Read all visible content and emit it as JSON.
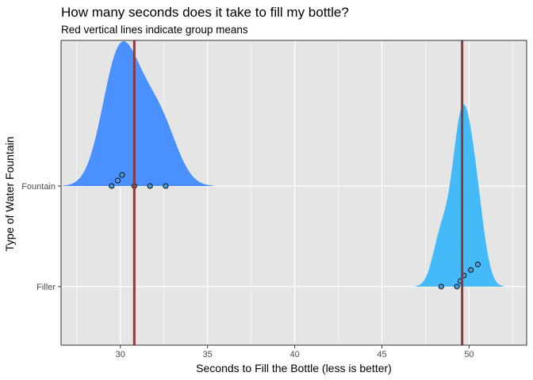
{
  "chart_data": {
    "type": "ridgeline",
    "title": "How many seconds does it take to fill my bottle?",
    "subtitle": "Red vertical lines indicate group means",
    "xlabel": "Seconds to Fill the Bottle (less is better)",
    "ylabel": "Type of Water Fountain",
    "xlim": [
      26.6,
      53.3
    ],
    "x_ticks": [
      30,
      35,
      40,
      45,
      50
    ],
    "x_tick_labels": [
      "30",
      "35",
      "40",
      "45",
      "50"
    ],
    "categories": [
      "Filler",
      "Fountain"
    ],
    "grid": true,
    "panel_background": "#e5e5e5",
    "grid_color": "#ffffff",
    "mean_line_color": "#8b3a3a",
    "point_fill": "#4b9cd3",
    "series": [
      {
        "category": "Fountain",
        "color": "#4a90ff",
        "points": [
          29.5,
          29.85,
          30.1,
          30.8,
          31.7,
          32.6
        ],
        "mean": 30.8
      },
      {
        "category": "Filler",
        "color": "#44bbf8",
        "points": [
          48.4,
          49.3,
          49.5,
          49.7,
          50.1,
          50.5
        ],
        "mean": 49.6
      }
    ]
  }
}
